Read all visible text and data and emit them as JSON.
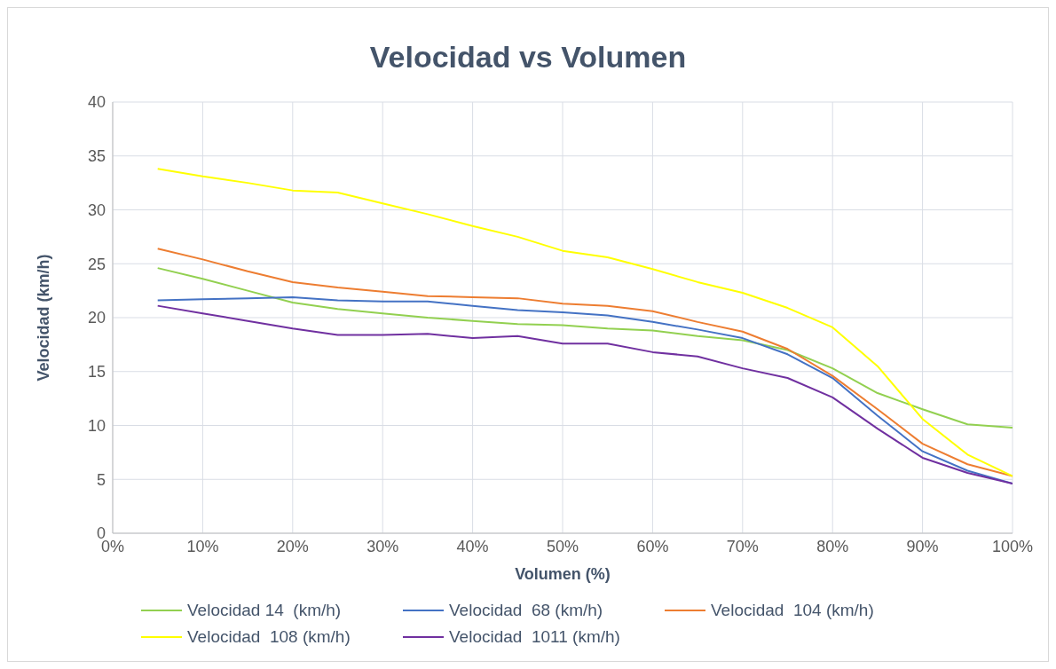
{
  "chart_data": {
    "type": "line",
    "title": "Velocidad vs Volumen",
    "xlabel": "Volumen (%)",
    "ylabel": "Velocidad (km/h)",
    "x": [
      5,
      10,
      15,
      20,
      25,
      30,
      35,
      40,
      45,
      50,
      55,
      60,
      65,
      70,
      75,
      80,
      85,
      90,
      95,
      100
    ],
    "series": [
      {
        "name": "Velocidad 14  (km/h)",
        "color": "#92d050",
        "values": [
          24.6,
          23.6,
          22.5,
          21.4,
          20.8,
          20.4,
          20.0,
          19.7,
          19.4,
          19.3,
          19.0,
          18.8,
          18.3,
          17.9,
          17.0,
          15.3,
          13.0,
          11.5,
          10.1,
          9.8
        ]
      },
      {
        "name": "Velocidad  68 (km/h)",
        "color": "#4472c4",
        "values": [
          21.6,
          21.7,
          21.8,
          21.9,
          21.6,
          21.5,
          21.5,
          21.1,
          20.7,
          20.5,
          20.2,
          19.6,
          18.9,
          18.1,
          16.6,
          14.4,
          10.9,
          7.6,
          5.8,
          4.6
        ]
      },
      {
        "name": "Velocidad  104 (km/h)",
        "color": "#ed7d31",
        "values": [
          26.4,
          25.4,
          24.3,
          23.3,
          22.8,
          22.4,
          22.0,
          21.9,
          21.8,
          21.3,
          21.1,
          20.6,
          19.6,
          18.7,
          17.1,
          14.6,
          11.5,
          8.3,
          6.4,
          5.3
        ]
      },
      {
        "name": "Velocidad  108 (km/h)",
        "color": "#ffff00",
        "values": [
          33.8,
          33.1,
          32.5,
          31.8,
          31.6,
          30.6,
          29.6,
          28.5,
          27.5,
          26.2,
          25.6,
          24.5,
          23.3,
          22.3,
          20.9,
          19.1,
          15.5,
          10.6,
          7.3,
          5.3
        ]
      },
      {
        "name": "Velocidad  1011 (km/h)",
        "color": "#7030a0",
        "values": [
          21.1,
          20.4,
          19.7,
          19.0,
          18.4,
          18.4,
          18.5,
          18.1,
          18.3,
          17.6,
          17.6,
          16.8,
          16.4,
          15.3,
          14.4,
          12.6,
          9.7,
          7.0,
          5.6,
          4.6
        ]
      }
    ],
    "xlim": [
      0,
      100
    ],
    "xticks": [
      {
        "value": 0,
        "label": "0%"
      },
      {
        "value": 10,
        "label": "10%"
      },
      {
        "value": 20,
        "label": "20%"
      },
      {
        "value": 30,
        "label": "30%"
      },
      {
        "value": 40,
        "label": "40%"
      },
      {
        "value": 50,
        "label": "50%"
      },
      {
        "value": 60,
        "label": "60%"
      },
      {
        "value": 70,
        "label": "70%"
      },
      {
        "value": 80,
        "label": "80%"
      },
      {
        "value": 90,
        "label": "90%"
      },
      {
        "value": 100,
        "label": "100%"
      }
    ],
    "ylim": [
      0,
      40
    ],
    "yticks": [
      0,
      5,
      10,
      15,
      20,
      25,
      30,
      35,
      40
    ],
    "grid": true,
    "legend": "bottom",
    "marker": "none",
    "line_style": "solid"
  }
}
